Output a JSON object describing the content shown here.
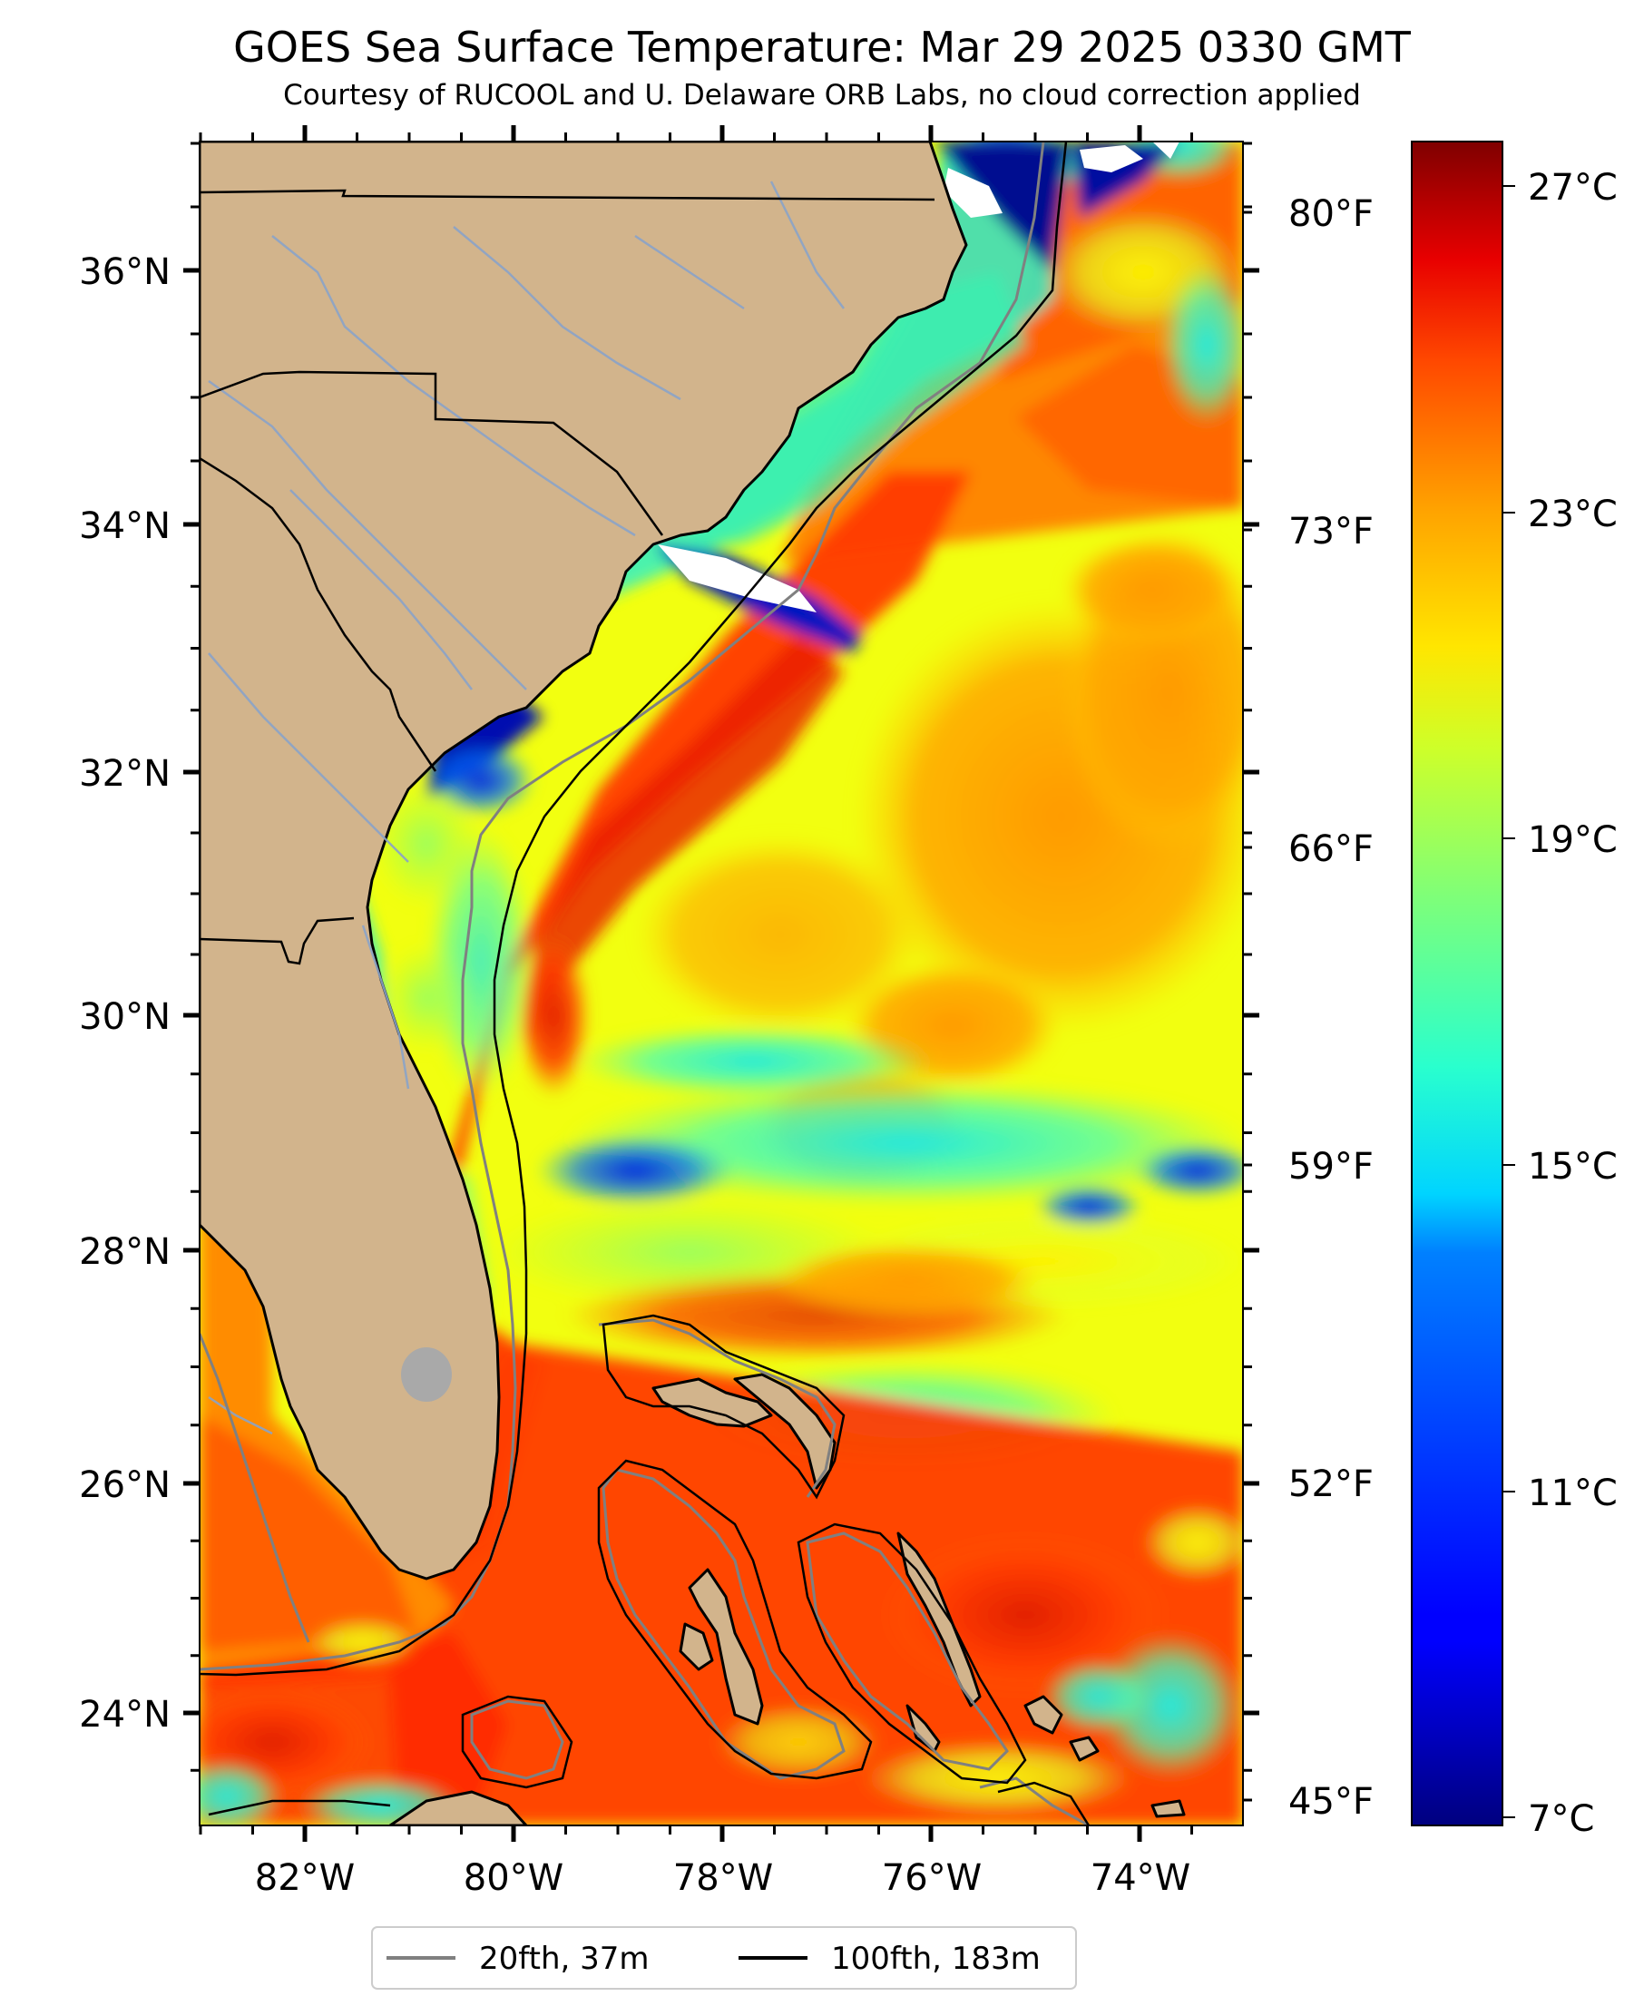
{
  "title": "GOES Sea Surface Temperature: Mar 29 2025 0330 GMT",
  "subtitle": "Courtesy of RUCOOL and U. Delaware ORB Labs, no cloud correction applied",
  "map": {
    "lon_labels": [
      "82°W",
      "80°W",
      "78°W",
      "76°W",
      "74°W"
    ],
    "lat_labels": [
      "36°N",
      "34°N",
      "32°N",
      "30°N",
      "28°N",
      "26°N",
      "24°N"
    ],
    "fahrenheit_labels": [
      "80°F",
      "73°F",
      "66°F",
      "59°F",
      "52°F",
      "45°F"
    ]
  },
  "colorbar": {
    "labels": [
      "27°C",
      "23°C",
      "19°C",
      "15°C",
      "11°C",
      "7°C"
    ],
    "range_c": [
      6.5,
      27.6
    ],
    "colormap": "jet"
  },
  "legend": {
    "items": [
      {
        "label": "20fth, 37m",
        "color": "#808080"
      },
      {
        "label": "100fth, 183m",
        "color": "#000000"
      }
    ]
  },
  "colors": {
    "land": "#d2b48c",
    "ocean_cold": "#00008b",
    "ocean_warm": "#ff4500"
  }
}
